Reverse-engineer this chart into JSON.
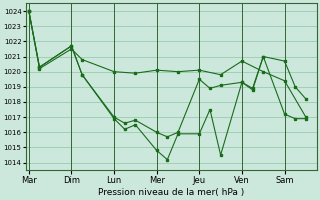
{
  "bg_color": "#cce8dd",
  "grid_color": "#99ccaa",
  "line_color": "#1a6b1a",
  "marker_color": "#1a6b1a",
  "xlabel": "Pression niveau de la mer( hPa )",
  "ylim": [
    1013.5,
    1024.5
  ],
  "yticks": [
    1014,
    1015,
    1016,
    1017,
    1018,
    1019,
    1020,
    1021,
    1022,
    1023,
    1024
  ],
  "day_labels": [
    "Mar",
    "Dim",
    "Lun",
    "Mer",
    "Jeu",
    "Ven",
    "Sam"
  ],
  "day_positions": [
    0,
    4,
    8,
    12,
    16,
    20,
    24
  ],
  "xlim": [
    -0.3,
    27.0
  ],
  "series": [
    {
      "x": [
        0,
        1,
        4,
        5,
        8,
        9,
        10,
        12,
        13,
        14,
        16,
        17,
        18,
        20,
        21,
        22,
        24,
        25,
        26
      ],
      "y": [
        1024,
        1020.3,
        1021.7,
        1019.8,
        1016.9,
        1016.2,
        1016.5,
        1014.8,
        1014.2,
        1015.9,
        1015.9,
        1017.5,
        1014.5,
        1019.3,
        1018.8,
        1021.0,
        1020.7,
        1019.0,
        1018.2
      ]
    },
    {
      "x": [
        0,
        1,
        4,
        5,
        8,
        9,
        10,
        12,
        13,
        14,
        16,
        17,
        18,
        20,
        21,
        22,
        24,
        25,
        26
      ],
      "y": [
        1024,
        1020.3,
        1021.7,
        1019.8,
        1017.0,
        1016.6,
        1016.8,
        1016.0,
        1015.7,
        1016.0,
        1019.5,
        1018.9,
        1019.1,
        1019.3,
        1018.9,
        1021.0,
        1017.2,
        1016.9,
        1016.9
      ]
    },
    {
      "x": [
        0,
        1,
        4,
        5,
        8,
        10,
        12,
        14,
        16,
        18,
        20,
        22,
        24,
        26
      ],
      "y": [
        1024,
        1020.2,
        1021.5,
        1020.8,
        1020.0,
        1019.9,
        1020.1,
        1020.0,
        1020.1,
        1019.8,
        1020.7,
        1020.0,
        1019.4,
        1017.0
      ]
    }
  ]
}
